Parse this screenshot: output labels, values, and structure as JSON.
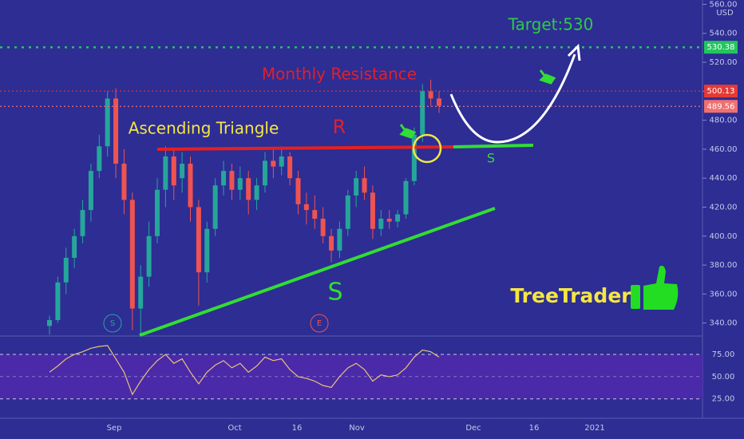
{
  "chart_data": [
    {
      "type": "candlestick",
      "currency": "USD",
      "ylim": [
        331,
        563
      ],
      "yticks": [
        {
          "value": 340,
          "label": "340.00"
        },
        {
          "value": 360,
          "label": "360.00"
        },
        {
          "value": 380,
          "label": "380.00"
        },
        {
          "value": 400,
          "label": "400.00"
        },
        {
          "value": 420,
          "label": "420.00"
        },
        {
          "value": 440,
          "label": "440.00"
        },
        {
          "value": 460,
          "label": "460.00"
        },
        {
          "value": 480,
          "label": "480.00"
        },
        {
          "value": 500,
          "label": "500.00"
        },
        {
          "value": 520,
          "label": "520.00"
        },
        {
          "value": 540,
          "label": "540.00"
        },
        {
          "value": 560,
          "label": "560.00"
        }
      ],
      "xtick_labels": [
        "Sep",
        "Oct",
        "16",
        "Nov",
        "Dec",
        "16",
        "2021"
      ],
      "up_color": "#26a69a",
      "down_color": "#ef5350",
      "open": [
        338,
        342,
        368,
        385,
        400,
        418,
        445,
        462,
        495,
        450,
        425,
        350,
        372,
        400,
        432,
        455,
        440,
        450,
        420,
        375,
        405,
        435,
        445,
        432,
        440,
        425,
        435,
        452,
        448,
        455,
        440,
        422,
        418,
        412,
        400,
        390,
        405,
        428,
        440,
        430,
        405,
        412,
        410,
        415,
        438,
        470,
        500,
        495
      ],
      "high": [
        345,
        372,
        392,
        405,
        425,
        450,
        470,
        500,
        502,
        460,
        430,
        380,
        410,
        440,
        462,
        460,
        458,
        455,
        425,
        410,
        440,
        452,
        450,
        448,
        445,
        440,
        458,
        460,
        462,
        458,
        445,
        430,
        428,
        420,
        405,
        410,
        432,
        445,
        448,
        435,
        418,
        418,
        418,
        440,
        475,
        505,
        508,
        500
      ],
      "low": [
        332,
        340,
        360,
        378,
        395,
        410,
        440,
        455,
        440,
        415,
        335,
        332,
        365,
        395,
        420,
        425,
        430,
        410,
        352,
        368,
        400,
        428,
        425,
        425,
        415,
        418,
        430,
        440,
        442,
        435,
        415,
        408,
        405,
        395,
        382,
        385,
        400,
        420,
        425,
        398,
        400,
        405,
        406,
        412,
        435,
        465,
        490,
        485
      ],
      "close": [
        342,
        368,
        385,
        400,
        418,
        445,
        462,
        495,
        450,
        425,
        350,
        372,
        400,
        432,
        455,
        435,
        450,
        420,
        375,
        405,
        435,
        445,
        432,
        440,
        425,
        435,
        452,
        448,
        455,
        440,
        422,
        418,
        412,
        400,
        390,
        405,
        428,
        440,
        430,
        405,
        412,
        410,
        415,
        438,
        470,
        500,
        495,
        490
      ],
      "price_lines": [
        {
          "value": 530.38,
          "color": "#22c55e"
        },
        {
          "value": 500.13,
          "color": "#e53935"
        },
        {
          "value": 489.56,
          "color": "#f07070"
        }
      ],
      "annotations": {
        "target": "Target:530",
        "resistance": "Monthly Resistance",
        "pattern": "Ascending Triangle",
        "r": "R",
        "s_small": "S",
        "s_big": "S",
        "brand": "TreeTrader",
        "event_s": "S",
        "event_e": "E"
      }
    },
    {
      "type": "line",
      "color": "#e8c27a",
      "ylim": [
        5,
        93
      ],
      "yticks": [
        {
          "value": 25,
          "label": "25.00"
        },
        {
          "value": 50,
          "label": "50.00"
        },
        {
          "value": 75,
          "label": "75.00"
        }
      ],
      "values": [
        55,
        62,
        70,
        75,
        78,
        82,
        84,
        85,
        70,
        55,
        30,
        45,
        58,
        68,
        75,
        65,
        70,
        55,
        42,
        55,
        63,
        68,
        60,
        65,
        55,
        62,
        72,
        68,
        70,
        58,
        50,
        48,
        45,
        40,
        38,
        50,
        60,
        65,
        58,
        45,
        52,
        50,
        52,
        60,
        72,
        80,
        78,
        72
      ]
    }
  ]
}
